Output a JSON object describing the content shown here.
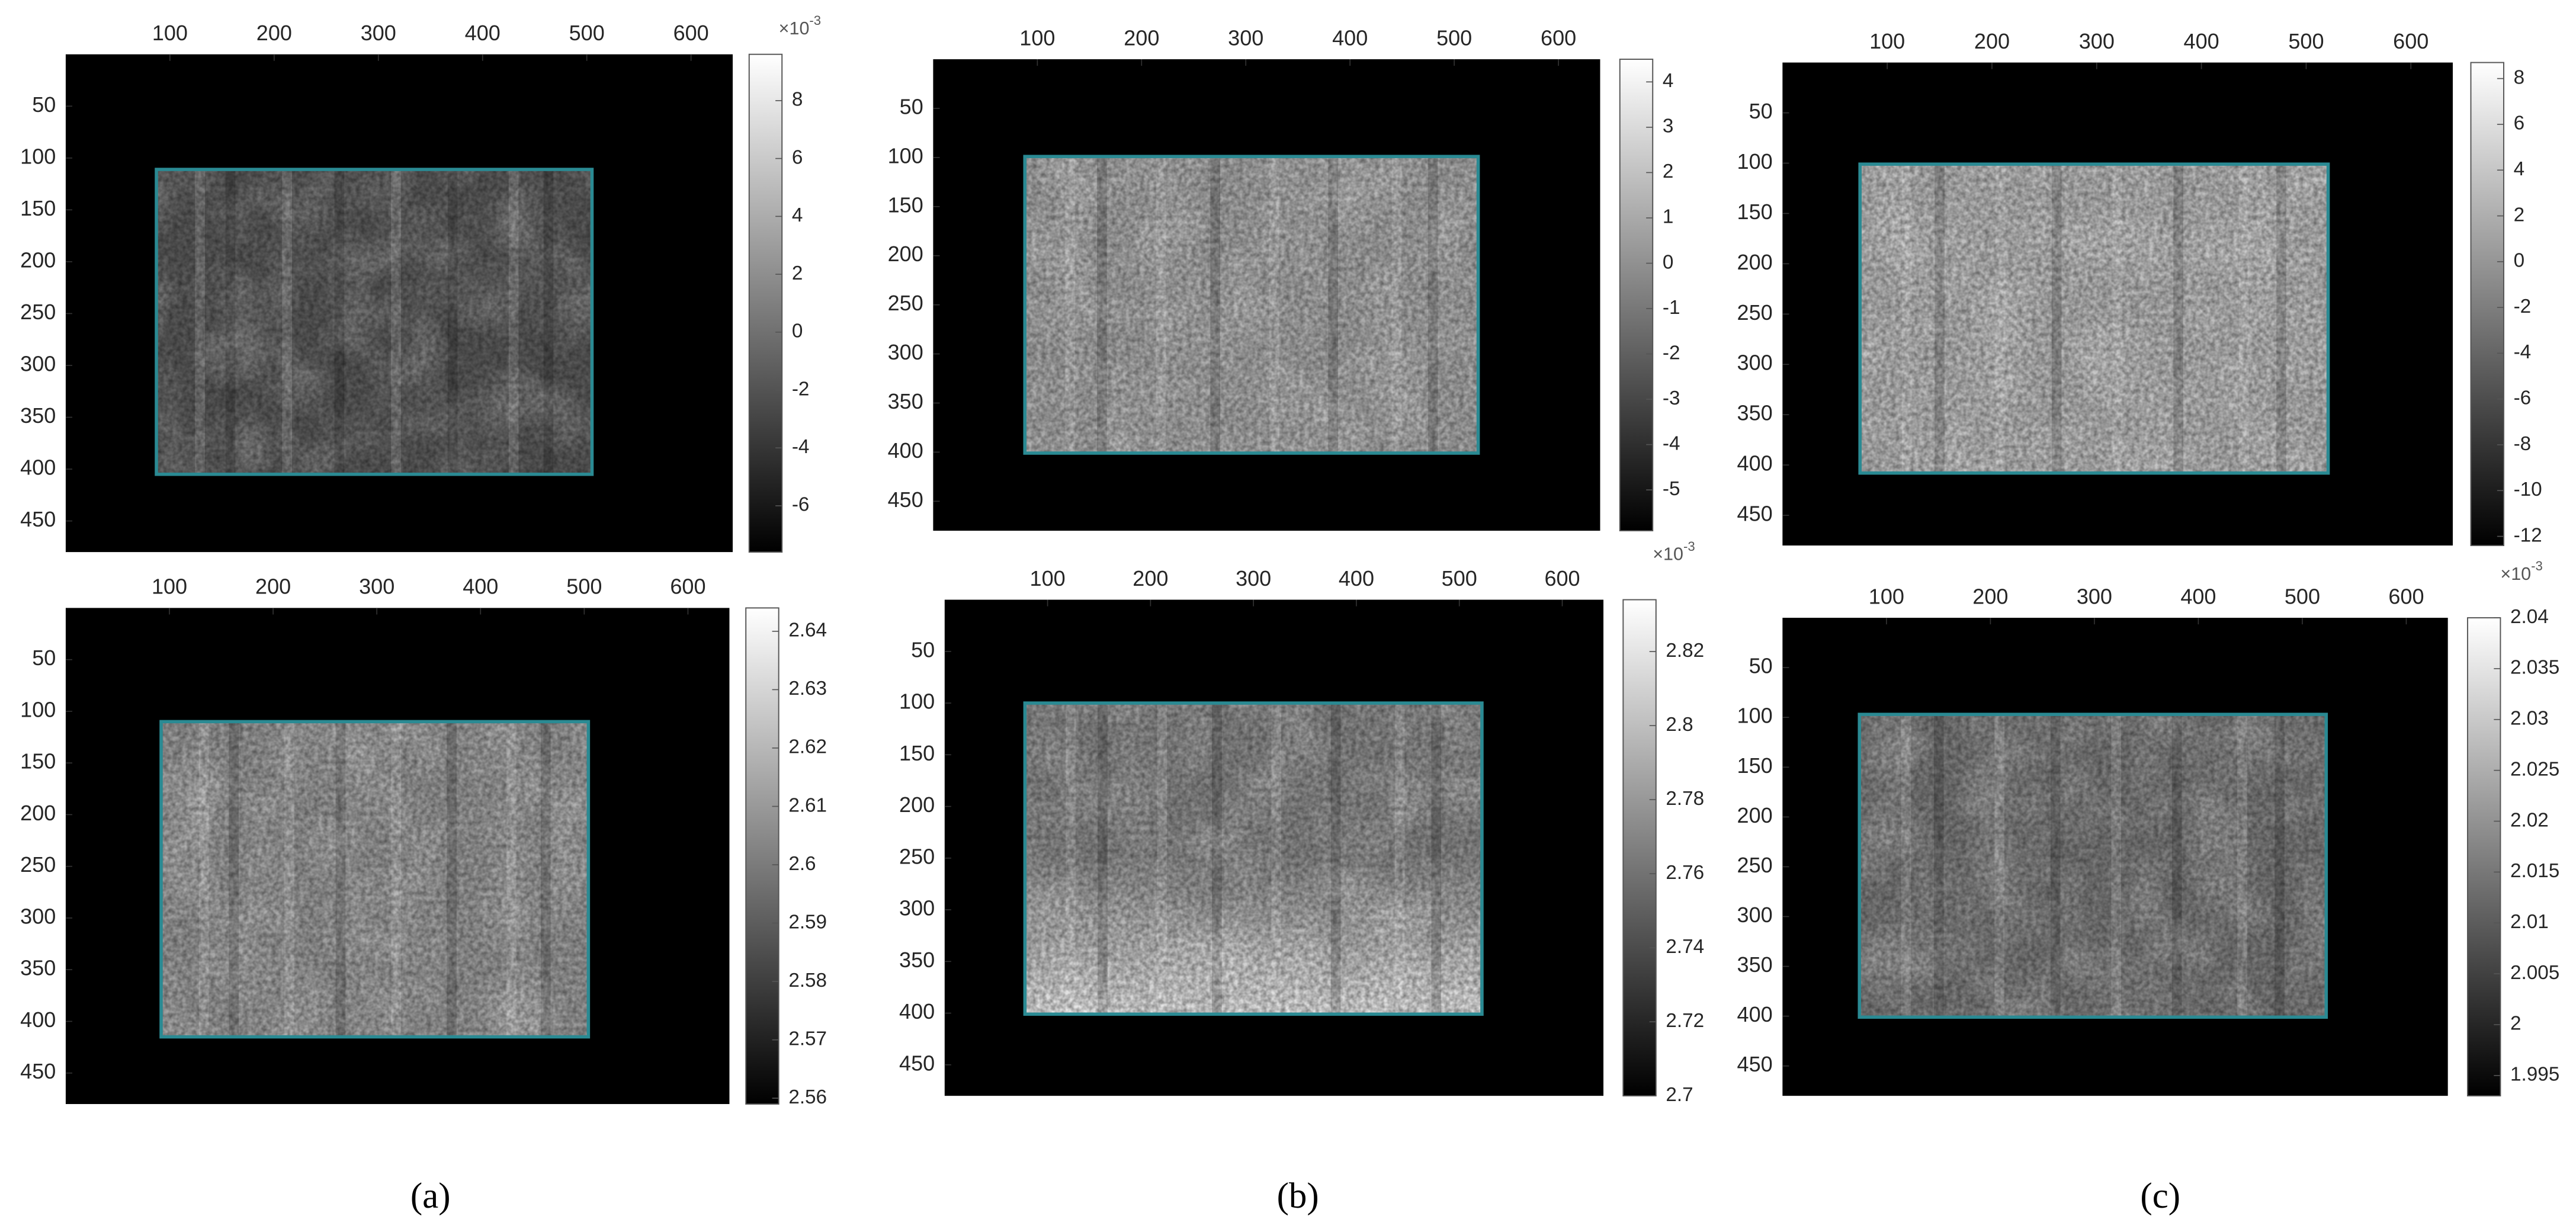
{
  "chart_data": [
    {
      "type": "heatmap",
      "cmap": "gray",
      "xlim": [
        0,
        640
      ],
      "ylim": [
        0,
        480
      ],
      "yreverse": true,
      "xticks": [
        100,
        200,
        300,
        400,
        500,
        600
      ],
      "yticks": [
        50,
        100,
        150,
        200,
        250,
        300,
        350,
        400,
        450
      ],
      "roi": {
        "x": [
          87,
          505
        ],
        "y": [
          111,
          405
        ],
        "color": "#2a8a93"
      },
      "colorbar": {
        "clim": [
          -7.6,
          9.6
        ],
        "ticks": [
          8,
          6,
          4,
          2,
          0,
          -2,
          -4,
          -6
        ],
        "exponent_base": "×10",
        "exponent": "-3"
      }
    },
    {
      "type": "heatmap",
      "cmap": "gray",
      "xlim": [
        0,
        640
      ],
      "ylim": [
        0,
        480
      ],
      "yreverse": true,
      "xticks": [
        100,
        200,
        300,
        400,
        500,
        600
      ],
      "yticks": [
        50,
        100,
        150,
        200,
        250,
        300,
        350,
        400,
        450
      ],
      "roi": {
        "x": [
          92,
          504
        ],
        "y": [
          110,
          415
        ],
        "color": "#2a8a93"
      },
      "colorbar": {
        "clim": [
          2.559,
          2.644
        ],
        "ticks": [
          2.64,
          2.63,
          2.62,
          2.61,
          2.6,
          2.59,
          2.58,
          2.57,
          2.56
        ]
      }
    },
    {
      "type": "heatmap",
      "cmap": "gray",
      "xlim": [
        0,
        640
      ],
      "ylim": [
        0,
        480
      ],
      "yreverse": true,
      "xticks": [
        100,
        200,
        300,
        400,
        500,
        600
      ],
      "yticks": [
        50,
        100,
        150,
        200,
        250,
        300,
        350,
        400,
        450
      ],
      "roi": {
        "x": [
          88,
          523
        ],
        "y": [
          99,
          401
        ],
        "color": "#2a8a93"
      },
      "colorbar": {
        "clim": [
          -5.9,
          4.5
        ],
        "ticks": [
          4,
          3,
          2,
          1,
          0,
          -1,
          -2,
          -3,
          -4,
          -5
        ]
      }
    },
    {
      "type": "heatmap",
      "cmap": "gray",
      "xlim": [
        0,
        640
      ],
      "ylim": [
        0,
        480
      ],
      "yreverse": true,
      "xticks": [
        100,
        200,
        300,
        400,
        500,
        600
      ],
      "yticks": [
        50,
        100,
        150,
        200,
        250,
        300,
        350,
        400,
        450
      ],
      "roi": {
        "x": [
          78,
          522
        ],
        "y": [
          100,
          401
        ],
        "color": "#2a8a93"
      },
      "colorbar": {
        "clim": [
          2.7,
          2.834
        ],
        "ticks": [
          2.82,
          2.8,
          2.78,
          2.76,
          2.74,
          2.72,
          2.7
        ],
        "exponent_base": "×10",
        "exponent": "-3"
      }
    },
    {
      "type": "heatmap",
      "cmap": "gray",
      "xlim": [
        0,
        640
      ],
      "ylim": [
        0,
        480
      ],
      "yreverse": true,
      "xticks": [
        100,
        200,
        300,
        400,
        500,
        600
      ],
      "yticks": [
        50,
        100,
        150,
        200,
        250,
        300,
        350,
        400,
        450
      ],
      "roi": {
        "x": [
          74,
          521
        ],
        "y": [
          101,
          408
        ],
        "color": "#2a8a93"
      },
      "colorbar": {
        "clim": [
          -12.4,
          8.7
        ],
        "ticks": [
          8,
          6,
          4,
          2,
          0,
          -2,
          -4,
          -6,
          -8,
          -10,
          -12
        ]
      }
    },
    {
      "type": "heatmap",
      "cmap": "gray",
      "xlim": [
        0,
        640
      ],
      "ylim": [
        0,
        480
      ],
      "yreverse": true,
      "xticks": [
        100,
        200,
        300,
        400,
        500,
        600
      ],
      "yticks": [
        50,
        100,
        150,
        200,
        250,
        300,
        350,
        400,
        450
      ],
      "roi": {
        "x": [
          74,
          523
        ],
        "y": [
          97,
          401
        ],
        "color": "#2a8a93"
      },
      "colorbar": {
        "clim": [
          1.993,
          2.04
        ],
        "ticks": [
          2.04,
          2.035,
          2.03,
          2.025,
          2.02,
          2.015,
          2.01,
          2.005,
          2,
          1.995
        ],
        "exponent_base": "×10",
        "exponent": "-3"
      }
    }
  ],
  "captions": [
    "(a)",
    "(b)",
    "(c)"
  ]
}
